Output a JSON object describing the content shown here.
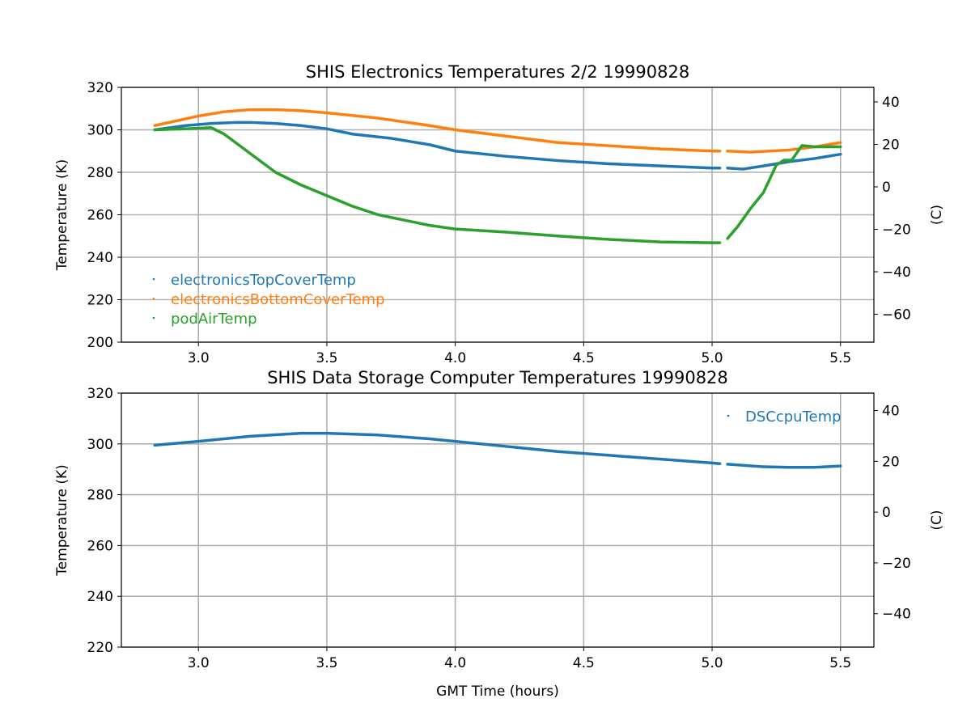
{
  "chart_data": [
    {
      "type": "line",
      "title": "SHIS Electronics Temperatures 2/2 19990828",
      "xlabel": "",
      "ylabel": "Temperature (K)",
      "y2label": "(C)",
      "xlim": [
        2.7,
        5.63
      ],
      "ylim": [
        200,
        320
      ],
      "xticks": [
        "3.0",
        "3.5",
        "4.0",
        "4.5",
        "5.0",
        "5.5"
      ],
      "yticks": [
        "200",
        "220",
        "240",
        "260",
        "280",
        "300",
        "320"
      ],
      "y2ticks": [
        "40",
        "20",
        "0",
        "−20",
        "−40",
        "−60"
      ],
      "grid": true,
      "legend": "lower-left",
      "series": [
        {
          "name": "electronicsTopCoverTemp",
          "color": "#1f77b4",
          "segments": [
            [
              [
                2.83,
                300
              ],
              [
                2.95,
                302
              ],
              [
                3.05,
                303
              ],
              [
                3.15,
                303.5
              ],
              [
                3.2,
                303.5
              ],
              [
                3.3,
                303
              ],
              [
                3.4,
                302
              ],
              [
                3.5,
                300.5
              ],
              [
                3.6,
                298
              ],
              [
                3.75,
                296
              ],
              [
                3.9,
                293
              ],
              [
                4.0,
                290
              ],
              [
                4.2,
                287.5
              ],
              [
                4.4,
                285.5
              ],
              [
                4.6,
                284
              ],
              [
                4.8,
                283
              ],
              [
                5.0,
                282
              ],
              [
                5.03,
                282
              ]
            ],
            [
              [
                5.06,
                282
              ],
              [
                5.12,
                281.5
              ],
              [
                5.2,
                283
              ],
              [
                5.3,
                285
              ],
              [
                5.4,
                286.5
              ],
              [
                5.5,
                288.5
              ]
            ]
          ]
        },
        {
          "name": "electronicsBottomCoverTemp",
          "color": "#ff7f0e",
          "segments": [
            [
              [
                2.83,
                302
              ],
              [
                3.0,
                306.5
              ],
              [
                3.1,
                308.5
              ],
              [
                3.2,
                309.5
              ],
              [
                3.3,
                309.5
              ],
              [
                3.4,
                309
              ],
              [
                3.5,
                308
              ],
              [
                3.7,
                305.5
              ],
              [
                3.9,
                302
              ],
              [
                4.0,
                300
              ],
              [
                4.2,
                297
              ],
              [
                4.4,
                294
              ],
              [
                4.6,
                292.5
              ],
              [
                4.8,
                291
              ],
              [
                5.0,
                290
              ],
              [
                5.03,
                290
              ]
            ],
            [
              [
                5.06,
                290
              ],
              [
                5.15,
                289.5
              ],
              [
                5.3,
                290.5
              ],
              [
                5.4,
                292
              ],
              [
                5.5,
                294
              ]
            ]
          ]
        },
        {
          "name": "podAirTemp",
          "color": "#2ca02c",
          "segments": [
            [
              [
                2.83,
                300
              ],
              [
                2.95,
                300.5
              ],
              [
                3.05,
                301
              ],
              [
                3.1,
                298
              ],
              [
                3.2,
                289
              ],
              [
                3.3,
                280
              ],
              [
                3.4,
                274
              ],
              [
                3.5,
                269
              ],
              [
                3.6,
                264
              ],
              [
                3.7,
                260
              ],
              [
                3.8,
                257.5
              ],
              [
                3.9,
                255
              ],
              [
                4.0,
                253.3
              ],
              [
                4.2,
                251.8
              ],
              [
                4.4,
                250
              ],
              [
                4.6,
                248.4
              ],
              [
                4.8,
                247.2
              ],
              [
                5.0,
                246.8
              ],
              [
                5.03,
                246.8
              ]
            ],
            [
              [
                5.06,
                248.8
              ],
              [
                5.1,
                254.5
              ],
              [
                5.15,
                263
              ],
              [
                5.2,
                270.5
              ],
              [
                5.25,
                283.4
              ],
              [
                5.28,
                285.7
              ],
              [
                5.31,
                285.7
              ],
              [
                5.35,
                292.6
              ],
              [
                5.4,
                292
              ],
              [
                5.5,
                292
              ]
            ]
          ]
        }
      ]
    },
    {
      "type": "line",
      "title": "SHIS Data Storage Computer Temperatures 19990828",
      "xlabel": "GMT Time (hours)",
      "ylabel": "Temperature (K)",
      "y2label": "(C)",
      "xlim": [
        2.7,
        5.63
      ],
      "ylim": [
        220,
        320
      ],
      "xticks": [
        "3.0",
        "3.5",
        "4.0",
        "4.5",
        "5.0",
        "5.5"
      ],
      "yticks": [
        "220",
        "240",
        "260",
        "280",
        "300",
        "320"
      ],
      "y2ticks": [
        "40",
        "20",
        "0",
        "−20",
        "−40"
      ],
      "grid": true,
      "legend": "upper-right",
      "series": [
        {
          "name": "DSCcpuTemp",
          "color": "#1f77b4",
          "segments": [
            [
              [
                2.83,
                299.5
              ],
              [
                3.0,
                301
              ],
              [
                3.2,
                303
              ],
              [
                3.4,
                304.2
              ],
              [
                3.5,
                304.2
              ],
              [
                3.7,
                303.5
              ],
              [
                3.9,
                302
              ],
              [
                4.0,
                301
              ],
              [
                4.2,
                299
              ],
              [
                4.4,
                297
              ],
              [
                4.6,
                295.5
              ],
              [
                4.8,
                294
              ],
              [
                5.0,
                292.5
              ],
              [
                5.03,
                292.2
              ]
            ],
            [
              [
                5.06,
                292
              ],
              [
                5.2,
                291
              ],
              [
                5.3,
                290.8
              ],
              [
                5.4,
                290.8
              ],
              [
                5.5,
                291.3
              ]
            ]
          ]
        }
      ]
    }
  ]
}
